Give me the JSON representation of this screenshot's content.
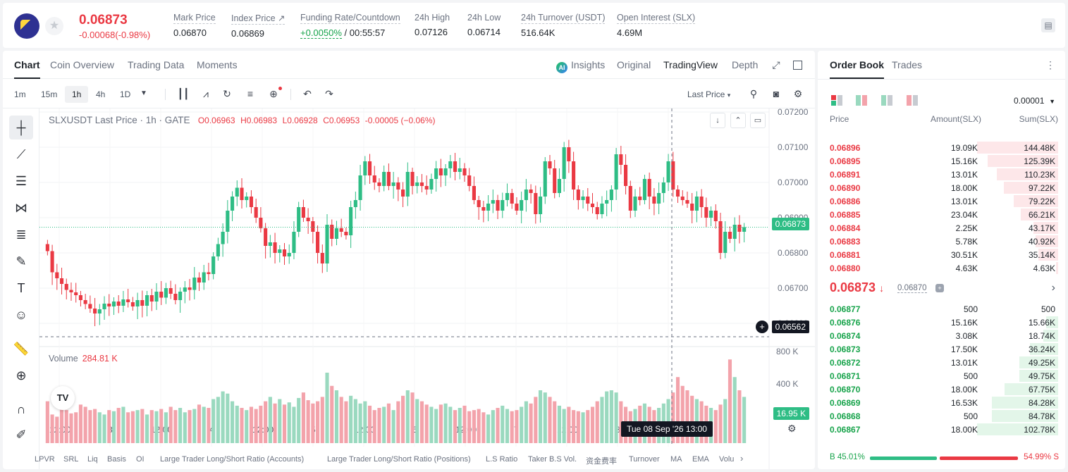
{
  "header": {
    "last_price": "0.06873",
    "change": "-0.00068(-0.98%)",
    "stats": [
      {
        "label": "Mark Price",
        "value": "0.06870"
      },
      {
        "label": "Index Price ↗",
        "value": "0.06869"
      },
      {
        "label": "Funding Rate/Countdown",
        "value_green": "+0.0050%",
        "value": " / 00:55:57"
      },
      {
        "label": "24h High",
        "value": "0.07126"
      },
      {
        "label": "24h Low",
        "value": "0.06714"
      },
      {
        "label": "24h Turnover (USDT)",
        "value": "516.64K"
      },
      {
        "label": "Open Interest (SLX)",
        "value": "4.69M"
      }
    ]
  },
  "chart_tabs": [
    "Chart",
    "Coin Overview",
    "Trading Data",
    "Moments"
  ],
  "view_tabs": {
    "insights": "Insights",
    "original": "Original",
    "tradingview": "TradingView",
    "depth": "Depth"
  },
  "timeframes": [
    "1m",
    "15m",
    "1h",
    "4h",
    "1D"
  ],
  "price_type": "Last Price",
  "ohlc": {
    "symbol": "SLXUSDT Last Price · 1h · GATE",
    "o": "O0.06963",
    "h": "H0.06983",
    "l": "L0.06928",
    "c": "C0.06953",
    "chg": "-0.00005 (−0.06%)"
  },
  "volume": {
    "label": "Volume",
    "value": "284.81 K",
    "last_tag": "16.95 K"
  },
  "price_tags": {
    "current": "0.06873",
    "crosshair": "0.06562"
  },
  "crosshair_time": "Tue 08 Sep '26   13:00",
  "indicators": [
    "LPVR",
    "SRL",
    "Liq",
    "Basis",
    "OI",
    "Large Trader Long/Short Ratio (Accounts)",
    "Large Trader Long/Short Ratio (Positions)",
    "L.S Ratio",
    "Taker B.S Vol.",
    "资金费率",
    "Turnover",
    "MA",
    "EMA",
    "Volu"
  ],
  "chart_data": {
    "type": "candlestick",
    "y_ticks": [
      "0.07200",
      "0.07100",
      "0.07000",
      "0.06900",
      "0.06800",
      "0.06700",
      "0.06600"
    ],
    "ylim": [
      0.0655,
      0.0721
    ],
    "vol_ticks": [
      "800 K",
      "400 K"
    ],
    "x_ticks": [
      "12:00",
      "3",
      "12:00",
      "4",
      "12:00",
      "5",
      "12:00",
      "6",
      "12:00",
      "7",
      "12:00",
      "8",
      "12:"
    ],
    "closes": [
      0.06805,
      0.06745,
      0.06728,
      0.06712,
      0.06695,
      0.06688,
      0.0668,
      0.06666,
      0.06655,
      0.06642,
      0.06628,
      0.0664,
      0.06656,
      0.06648,
      0.06662,
      0.0665,
      0.06668,
      0.0666,
      0.06648,
      0.06666,
      0.0665,
      0.0668,
      0.06662,
      0.0669,
      0.06673,
      0.067,
      0.06684,
      0.06666,
      0.0669,
      0.06702,
      0.06695,
      0.0673,
      0.06716,
      0.06745,
      0.0674,
      0.0679,
      0.06825,
      0.0686,
      0.0692,
      0.0696,
      0.06985,
      0.0695,
      0.0696,
      0.0693,
      0.069,
      0.0687,
      0.0682,
      0.0683,
      0.068,
      0.0681,
      0.0679,
      0.068,
      0.0686,
      0.0693,
      0.069,
      0.0689,
      0.0686,
      0.068,
      0.0677,
      0.0688,
      0.0684,
      0.0687,
      0.0686,
      0.0685,
      0.0693,
      0.0695,
      0.0702,
      0.0706,
      0.0702,
      0.07,
      0.0699,
      0.0703,
      0.0699,
      0.07,
      0.0698,
      0.0696,
      0.0703,
      0.0699,
      0.07,
      0.0699,
      0.0698,
      0.0701,
      0.0704,
      0.0702,
      0.0704,
      0.0706,
      0.0703,
      0.0704,
      0.0702,
      0.0699,
      0.0695,
      0.0693,
      0.0692,
      0.0694,
      0.0695,
      0.0692,
      0.0695,
      0.0697,
      0.0694,
      0.0692,
      0.0695,
      0.0698,
      0.0697,
      0.0691,
      0.0696,
      0.0706,
      0.0704,
      0.0697,
      0.0701,
      0.071,
      0.0706,
      0.0698,
      0.0695,
      0.0696,
      0.0694,
      0.0693,
      0.0691,
      0.0694,
      0.0695,
      0.0698,
      0.0708,
      0.0705,
      0.0699,
      0.0692,
      0.0696,
      0.0695,
      0.0701,
      0.0696,
      0.0694,
      0.0697,
      0.07,
      0.0706,
      0.0698,
      0.0696,
      0.0695,
      0.0694,
      0.0692,
      0.0696,
      0.0693,
      0.069,
      0.0692,
      0.0689,
      0.068,
      0.0686,
      0.0684,
      0.0688,
      0.0686,
      0.06873
    ],
    "volumes": [
      380,
      260,
      240,
      320,
      300,
      270,
      280,
      350,
      330,
      300,
      310,
      280,
      260,
      300,
      290,
      320,
      330,
      280,
      290,
      300,
      310,
      260,
      300,
      290,
      310,
      280,
      330,
      300,
      320,
      280,
      300,
      310,
      350,
      330,
      320,
      400,
      420,
      470,
      450,
      380,
      340,
      320,
      300,
      330,
      310,
      340,
      380,
      420,
      360,
      400,
      350,
      370,
      330,
      410,
      460,
      390,
      360,
      380,
      420,
      640,
      520,
      480,
      420,
      380,
      430,
      400,
      360,
      380,
      340,
      300,
      320,
      330,
      360,
      300,
      380,
      430,
      480,
      460,
      400,
      380,
      350,
      330,
      310,
      350,
      360,
      330,
      300,
      320,
      340,
      290,
      300,
      310,
      280,
      260,
      300,
      320,
      340,
      310,
      290,
      300,
      330,
      380,
      360,
      420,
      480,
      460,
      420,
      380,
      340,
      310,
      330,
      300,
      290,
      280,
      300,
      330,
      380,
      420,
      470,
      480,
      460,
      380,
      330,
      290,
      310,
      340,
      360,
      330,
      300,
      320,
      360,
      400,
      460,
      600,
      520,
      480,
      430,
      400,
      380,
      340,
      320,
      300,
      350,
      400,
      760,
      600,
      480,
      420,
      360,
      320
    ]
  },
  "orderbook": {
    "tabs": [
      "Order Book",
      "Trades"
    ],
    "precision": "0.00001",
    "headers": {
      "price": "Price",
      "amount": "Amount(SLX)",
      "sum": "Sum(SLX)"
    },
    "asks": [
      {
        "price": "0.06896",
        "amount": "19.09K",
        "sum": "144.48K",
        "depth": 1.0
      },
      {
        "price": "0.06895",
        "amount": "15.16K",
        "sum": "125.39K",
        "depth": 0.87
      },
      {
        "price": "0.06891",
        "amount": "13.01K",
        "sum": "110.23K",
        "depth": 0.76
      },
      {
        "price": "0.06890",
        "amount": "18.00K",
        "sum": "97.22K",
        "depth": 0.67
      },
      {
        "price": "0.06886",
        "amount": "13.01K",
        "sum": "79.22K",
        "depth": 0.55
      },
      {
        "price": "0.06885",
        "amount": "23.04K",
        "sum": "66.21K",
        "depth": 0.46
      },
      {
        "price": "0.06884",
        "amount": "2.25K",
        "sum": "43.17K",
        "depth": 0.3
      },
      {
        "price": "0.06883",
        "amount": "5.78K",
        "sum": "40.92K",
        "depth": 0.28
      },
      {
        "price": "0.06881",
        "amount": "30.51K",
        "sum": "35.14K",
        "depth": 0.24
      },
      {
        "price": "0.06880",
        "amount": "4.63K",
        "sum": "4.63K",
        "depth": 0.03
      }
    ],
    "mid_price": "0.06873",
    "mid_arrow": "↓",
    "mark": "0.06870",
    "bids": [
      {
        "price": "0.06877",
        "amount": "500",
        "sum": "500",
        "depth": 0.0
      },
      {
        "price": "0.06876",
        "amount": "15.16K",
        "sum": "15.66K",
        "depth": 0.15
      },
      {
        "price": "0.06874",
        "amount": "3.08K",
        "sum": "18.74K",
        "depth": 0.18
      },
      {
        "price": "0.06873",
        "amount": "17.50K",
        "sum": "36.24K",
        "depth": 0.35
      },
      {
        "price": "0.06872",
        "amount": "13.01K",
        "sum": "49.25K",
        "depth": 0.48
      },
      {
        "price": "0.06871",
        "amount": "500",
        "sum": "49.75K",
        "depth": 0.48
      },
      {
        "price": "0.06870",
        "amount": "18.00K",
        "sum": "67.75K",
        "depth": 0.66
      },
      {
        "price": "0.06869",
        "amount": "16.53K",
        "sum": "84.28K",
        "depth": 0.82
      },
      {
        "price": "0.06868",
        "amount": "500",
        "sum": "84.78K",
        "depth": 0.82
      },
      {
        "price": "0.06867",
        "amount": "18.00K",
        "sum": "102.78K",
        "depth": 1.0
      }
    ],
    "buy_pct": "B 45.01%",
    "sell_pct": "54.99% S",
    "buy_ratio": 0.4501
  },
  "colors": {
    "up": "#2ebd85",
    "down": "#ea3943",
    "up_vol": "#9ad9bf",
    "down_vol": "#f3a3ab"
  }
}
